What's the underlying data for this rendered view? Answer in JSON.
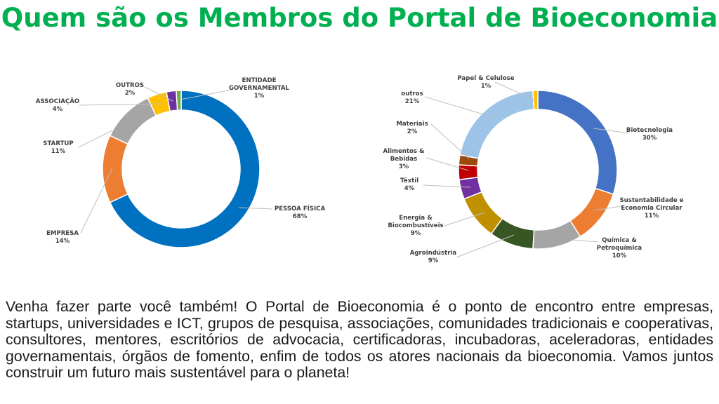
{
  "title": "Quem são os Membros do Portal de Bioeconomia",
  "paragraph": "Venha fazer parte você também! O Portal de Bioeconomia é o ponto de encontro entre empresas, startups, universidades e ICT, grupos de pesquisa, associações, comunidades tradicionais e cooperativas, consultores, mentores, escritórios de advocacia, certificadoras, incubadoras, aceleradoras, entidades governamentais, órgãos de fomento, enfim de todos os atores nacionais da bioeconomia. Vamos juntos construir um futuro mais sustentável para o planeta!",
  "chart_data": [
    {
      "type": "pie",
      "variant": "donut",
      "title": "",
      "slices": [
        {
          "label": [
            "PESSOA FÍSICA"
          ],
          "value": 68,
          "display": "68%",
          "color": "#0070c0"
        },
        {
          "label": [
            "EMPRESA"
          ],
          "value": 14,
          "display": "14%",
          "color": "#ed7d31"
        },
        {
          "label": [
            "STARTUP"
          ],
          "value": 11,
          "display": "11%",
          "color": "#a5a5a5"
        },
        {
          "label": [
            "ASSOCIAÇÃO"
          ],
          "value": 4,
          "display": "4%",
          "color": "#ffc000"
        },
        {
          "label": [
            "OUTROS"
          ],
          "value": 2,
          "display": "2%",
          "color": "#7030a0"
        },
        {
          "label": [
            "ENTIDADE",
            "GOVERNAMENTAL"
          ],
          "value": 1,
          "display": "1%",
          "color": "#70ad47"
        }
      ]
    },
    {
      "type": "pie",
      "variant": "donut",
      "title": "",
      "slices": [
        {
          "label": [
            "Biotecnologia"
          ],
          "value": 30,
          "display": "30%",
          "color": "#4472c4"
        },
        {
          "label": [
            "Sustentabilidade e",
            "Economia Circular"
          ],
          "value": 11,
          "display": "11%",
          "color": "#ed7d31"
        },
        {
          "label": [
            "Química &",
            "Petroquímica"
          ],
          "value": 10,
          "display": "10%",
          "color": "#a5a5a5"
        },
        {
          "label": [
            "Agroindústria"
          ],
          "value": 9,
          "display": "9%",
          "color": "#375623"
        },
        {
          "label": [
            "Energia &",
            "Biocombustíveis"
          ],
          "value": 9,
          "display": "9%",
          "color": "#bf9000"
        },
        {
          "label": [
            "Têxtil"
          ],
          "value": 4,
          "display": "4%",
          "color": "#7030a0"
        },
        {
          "label": [
            "Alimentos &",
            "Bebidas"
          ],
          "value": 3,
          "display": "3%",
          "color": "#c00000"
        },
        {
          "label": [
            "Materiais"
          ],
          "value": 2,
          "display": "2%",
          "color": "#9e480e"
        },
        {
          "label": [
            "outros"
          ],
          "value": 21,
          "display": "21%",
          "color": "#9dc3e6"
        },
        {
          "label": [
            "Papel & Celulose"
          ],
          "value": 1,
          "display": "1%",
          "color": "#ffc000"
        }
      ]
    }
  ]
}
